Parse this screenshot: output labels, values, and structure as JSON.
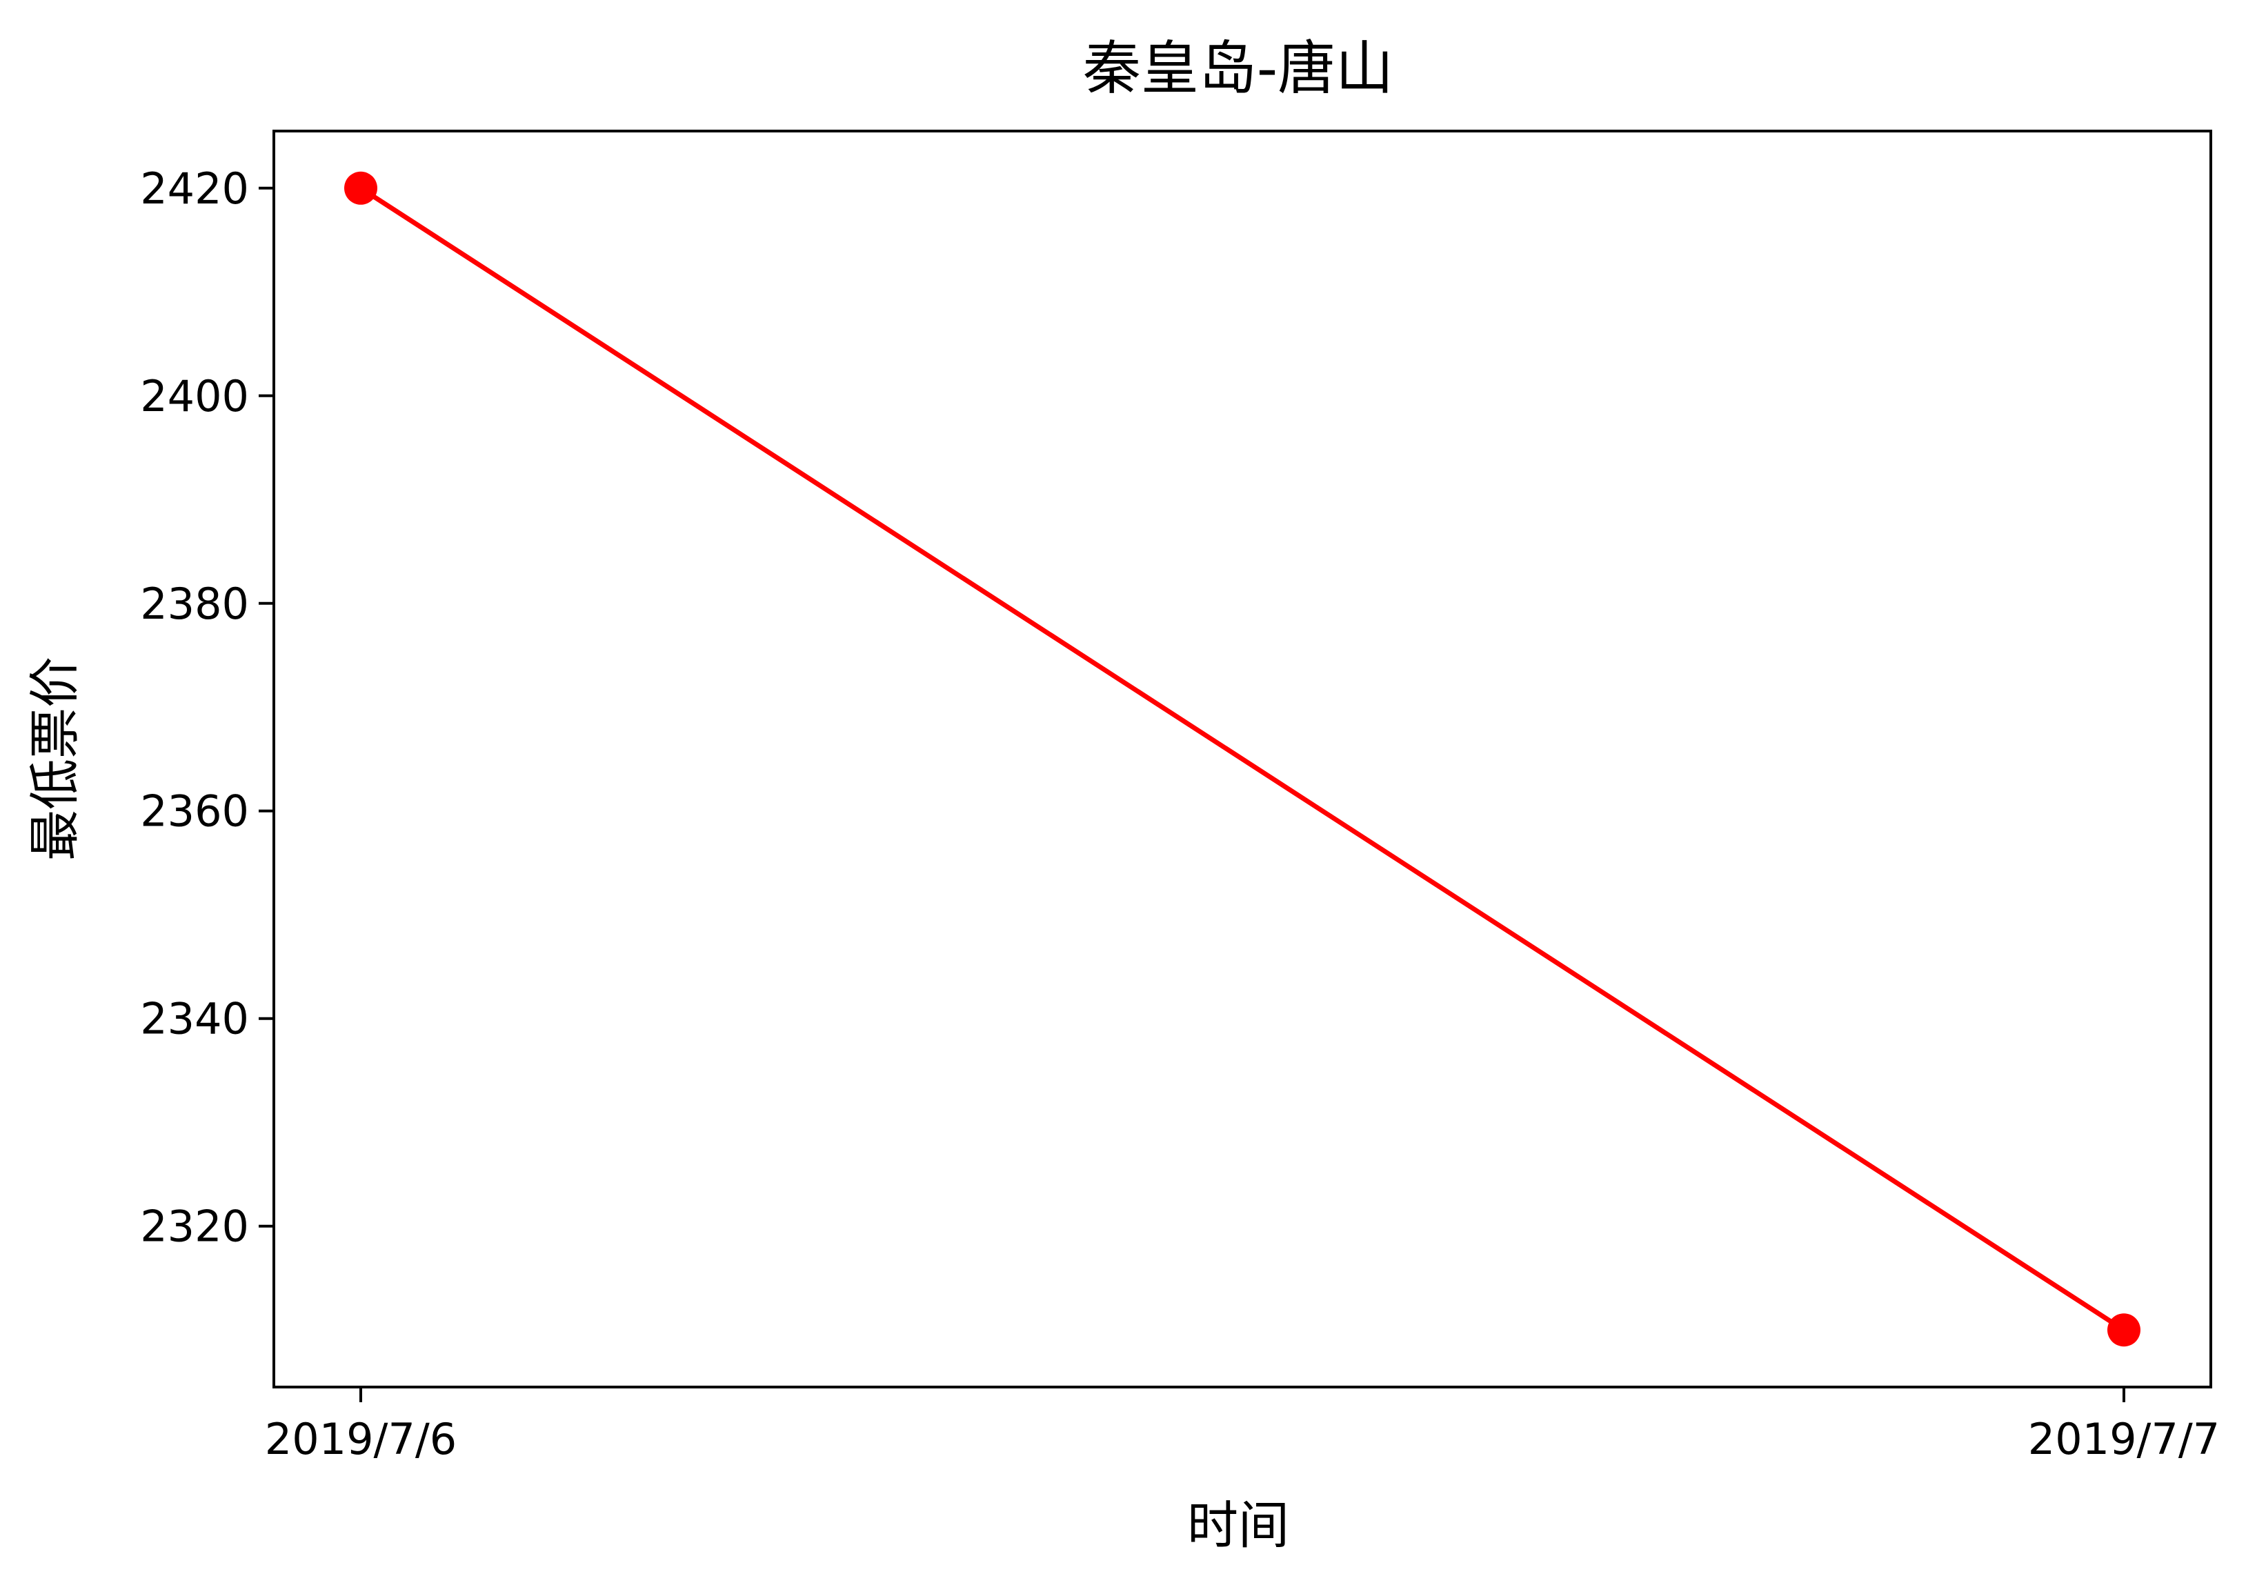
{
  "chart_data": {
    "type": "line",
    "title": "秦皇岛-唐山",
    "xlabel": "时间",
    "ylabel": "最低票价",
    "categories": [
      "2019/7/6",
      "2019/7/7"
    ],
    "series": [
      {
        "name": "最低票价",
        "values": [
          2420,
          2310
        ],
        "color": "#ff0000",
        "marker": "circle"
      }
    ],
    "yticks": [
      2320,
      2340,
      2360,
      2380,
      2400,
      2420
    ],
    "ylim": [
      2304.5,
      2425.5
    ],
    "grid": false,
    "legend": "none"
  }
}
